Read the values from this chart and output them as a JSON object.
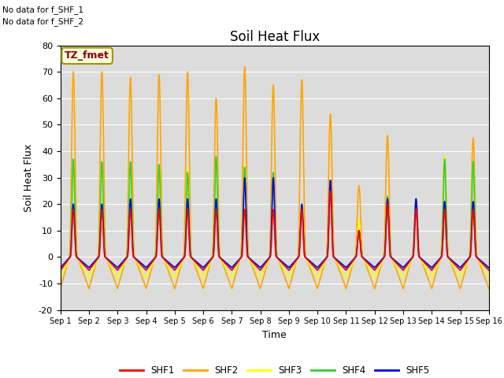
{
  "title": "Soil Heat Flux",
  "ylabel": "Soil Heat Flux",
  "xlabel": "Time",
  "ylim": [
    -20,
    80
  ],
  "xlim": [
    0,
    15
  ],
  "yticks": [
    -20,
    -10,
    0,
    10,
    20,
    30,
    40,
    50,
    60,
    70,
    80
  ],
  "xtick_labels": [
    "Sep 1",
    "Sep 2",
    "Sep 3",
    "Sep 4",
    "Sep 5",
    "Sep 6",
    "Sep 7",
    "Sep 8",
    "Sep 9",
    "Sep 10",
    "Sep 11",
    "Sep 12",
    "Sep 13",
    "Sep 14",
    "Sep 15",
    "Sep 16"
  ],
  "no_data_text": [
    "No data for f_SHF_1",
    "No data for f_SHF_2"
  ],
  "legend_label": "TZ_fmet",
  "series_colors": [
    "red",
    "orange",
    "yellow",
    "limegreen",
    "blue"
  ],
  "series_names": [
    "SHF1",
    "SHF2",
    "SHF3",
    "SHF4",
    "SHF5"
  ],
  "bg_color": "#dcdcdc",
  "title_fontsize": 12,
  "label_fontsize": 9,
  "shf2_peaks": [
    70,
    70,
    68,
    69,
    70,
    60,
    72,
    65,
    67,
    54,
    27,
    46,
    22,
    38,
    45
  ],
  "shf3_peaks": [
    35,
    35,
    35,
    35,
    33,
    37,
    35,
    30,
    20,
    27,
    14,
    23,
    22,
    38,
    36
  ],
  "shf4_peaks": [
    37,
    36,
    36,
    35,
    32,
    38,
    34,
    32,
    19,
    29,
    10,
    23,
    22,
    37,
    36
  ],
  "shf5_peaks": [
    20,
    20,
    22,
    22,
    22,
    22,
    30,
    30,
    20,
    29,
    10,
    22,
    22,
    21,
    21
  ],
  "shf1_peaks": [
    18,
    18,
    18,
    18,
    18,
    18,
    18,
    18,
    18,
    25,
    10,
    20,
    18,
    18,
    18
  ],
  "shf2_night": -12,
  "shf3_night": -8,
  "shf4_night": -5,
  "shf5_night": -4,
  "shf1_night": -5
}
